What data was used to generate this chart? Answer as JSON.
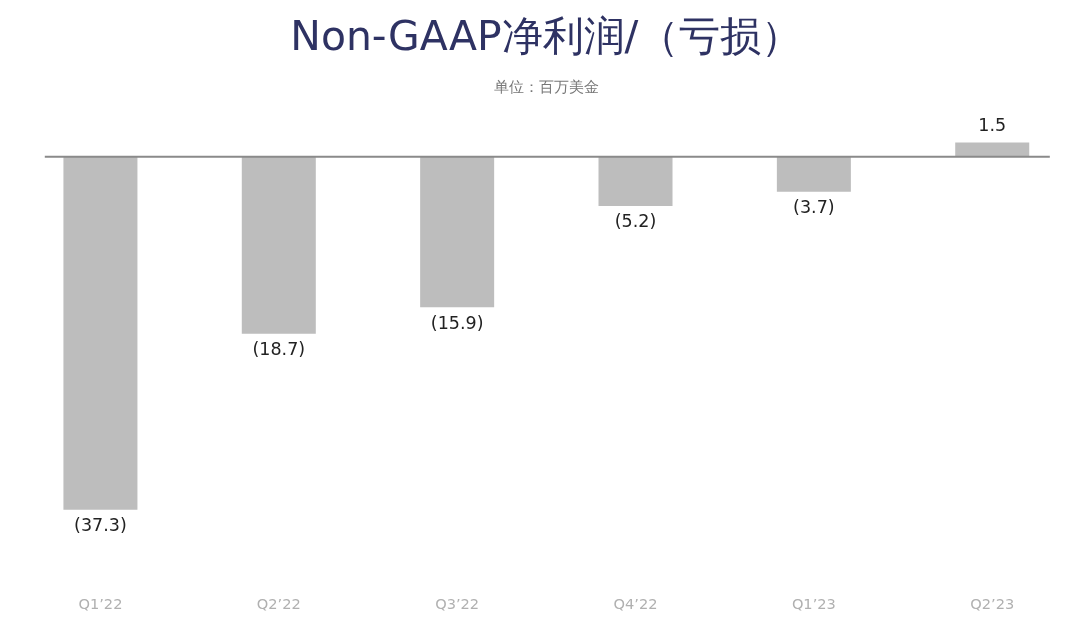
{
  "chart_data": {
    "type": "bar",
    "title": "Non-GAAP净利润/（亏损）",
    "subtitle": "单位：百万美金",
    "categories": [
      "Q1’22",
      "Q2’22",
      "Q3’22",
      "Q4’22",
      "Q1’23",
      "Q2’23"
    ],
    "values": [
      -37.3,
      -18.7,
      -15.9,
      -5.2,
      -3.7,
      1.5
    ],
    "value_labels": [
      "(37.3)",
      "(18.7)",
      "(15.9)",
      "(5.2)",
      "(3.7)",
      "1.5"
    ],
    "color": "#bdbdbd",
    "grid": false
  }
}
